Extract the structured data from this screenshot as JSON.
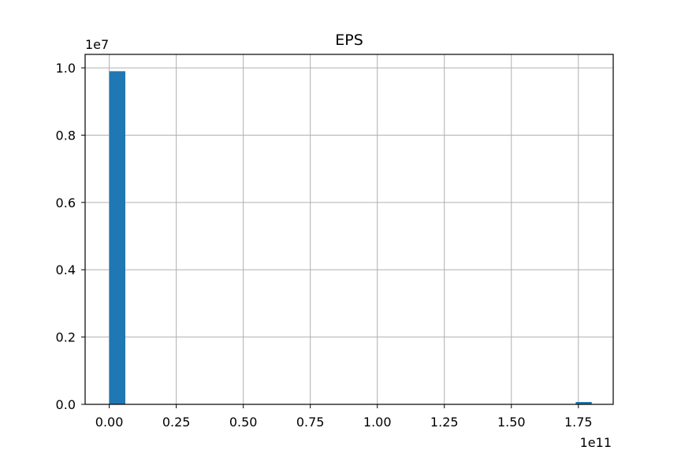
{
  "chart_data": {
    "type": "bar",
    "title": "EPS",
    "xlabel": "",
    "ylabel": "",
    "x_offset_label": "1e11",
    "y_offset_label": "1e7",
    "xlim": [
      -0.09,
      1.88
    ],
    "ylim": [
      0,
      1.04
    ],
    "x_ticks": [
      0.0,
      0.25,
      0.5,
      0.75,
      1.0,
      1.25,
      1.5,
      1.75
    ],
    "x_tick_labels": [
      "0.00",
      "0.25",
      "0.50",
      "0.75",
      "1.00",
      "1.25",
      "1.50",
      "1.75"
    ],
    "y_ticks": [
      0.0,
      0.2,
      0.4,
      0.6,
      0.8,
      1.0
    ],
    "y_tick_labels": [
      "0.0",
      "0.2",
      "0.4",
      "0.6",
      "0.8",
      "1.0"
    ],
    "grid": true,
    "bar_color": "#1f77b4",
    "bins": [
      {
        "x0": 0.0,
        "x1": 0.06,
        "value": 0.99
      },
      {
        "x0": 1.74,
        "x1": 1.8,
        "value": 0.007
      }
    ]
  }
}
